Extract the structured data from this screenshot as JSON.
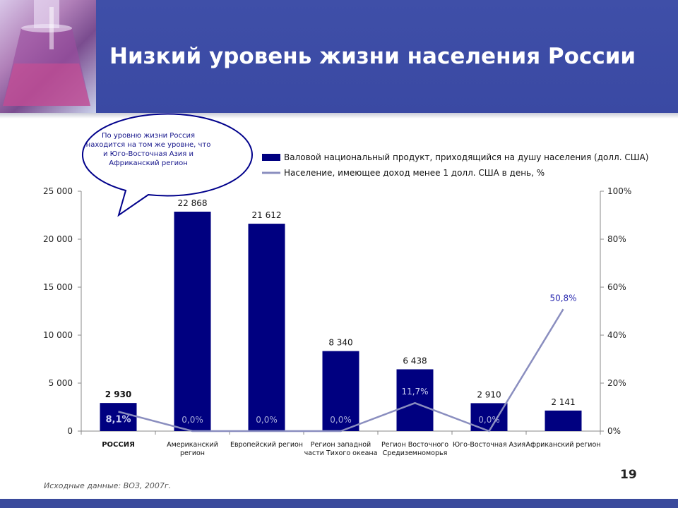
{
  "slide": {
    "title": "Низкий уровень жизни населения России",
    "callout": "По уровню жизни Россия находится на том же уровне, что и Юго-Восточная Азия и Африканский регион",
    "footnote": "Исходные данные: ВОЗ, 2007г.",
    "page_number": "19"
  },
  "colors": {
    "header": "#3a49a3",
    "bar": "#000080",
    "line": "#8a8ebf",
    "callout_border": "#00008b",
    "callout_text": "#14148a"
  },
  "chart_data": {
    "type": "bar",
    "categories": [
      [
        "РОССИЯ"
      ],
      [
        "Американский",
        "регион"
      ],
      [
        "Европейский регион"
      ],
      [
        "Регион западной",
        "части Тихого океана"
      ],
      [
        "Регион Восточного",
        "Средиземноморья"
      ],
      [
        "Юго-Восточная Азия"
      ],
      [
        "Африканский регион"
      ]
    ],
    "series": [
      {
        "name": "Валовой национальный продукт, приходящийся на душу населения (долл. США)",
        "type": "bar",
        "axis": "left",
        "values": [
          2930,
          22868,
          21612,
          8340,
          6438,
          2910,
          2141
        ],
        "labels": [
          "2 930",
          "22 868",
          "21 612",
          "8 340",
          "6 438",
          "2 910",
          "2 141"
        ]
      },
      {
        "name": "Население, имеющее доход менее 1 долл. США в день, %",
        "type": "line",
        "axis": "right",
        "values": [
          8.1,
          0.0,
          0.0,
          0.0,
          11.7,
          0.0,
          50.8
        ],
        "labels": [
          "8,1%",
          "0,0%",
          "0,0%",
          "0,0%",
          "11,7%",
          "0,0%",
          "50,8%"
        ]
      }
    ],
    "left_axis": {
      "range": [
        0,
        25000
      ],
      "ticks": [
        0,
        5000,
        10000,
        15000,
        20000,
        25000
      ],
      "tick_labels": [
        "0",
        "5 000",
        "10 000",
        "15 000",
        "20 000",
        "25 000"
      ]
    },
    "right_axis": {
      "range": [
        0,
        100
      ],
      "ticks": [
        0,
        20,
        40,
        60,
        80,
        100
      ],
      "tick_labels": [
        "0%",
        "20%",
        "40%",
        "60%",
        "80%",
        "100%"
      ]
    },
    "grid": false,
    "legend": "top-right"
  }
}
